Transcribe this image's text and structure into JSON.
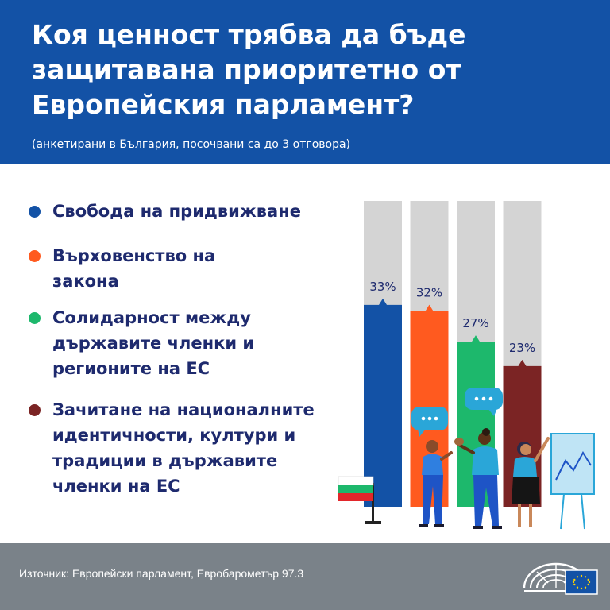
{
  "header": {
    "title": "Коя ценност трябва да бъде защитавана приоритетно от Европейския парламент?",
    "subtitle": "(анкетирани в България, посочвани са до 3 отговора)"
  },
  "legend": {
    "items": [
      {
        "label": "Свобода на придвижване",
        "color": "#1352a6"
      },
      {
        "label": "Върховенство на закона",
        "color": "#ff5a1f"
      },
      {
        "label": "Солидарност между държавите членки и регионите на ЕС",
        "color": "#1db86c"
      },
      {
        "label": "Зачитане на националните идентичности, култури и традиции в държавите членки на ЕС",
        "color": "#7b2424"
      }
    ]
  },
  "chart_data": {
    "type": "bar",
    "categories": [
      "Свобода на придвижване",
      "Върховенство на закона",
      "Солидарност между държавите членки и регионите на ЕС",
      "Зачитане на националните идентичности, култури и традиции в държавите членки на ЕС"
    ],
    "values": [
      33,
      32,
      27,
      23
    ],
    "value_labels": [
      "33%",
      "32%",
      "27%",
      "23%"
    ],
    "colors": [
      "#1352a6",
      "#ff5a1f",
      "#1db86c",
      "#7b2424"
    ],
    "background_color": "#d4d4d4",
    "ylim": [
      0,
      50
    ],
    "grid": false,
    "title": "Коя ценност трябва да бъде защитавана приоритетно от Европейския парламент?",
    "xlabel": "",
    "ylabel": ""
  },
  "footer": {
    "source": "Източник: Европейски парламент, Евробарометър 97.3"
  }
}
